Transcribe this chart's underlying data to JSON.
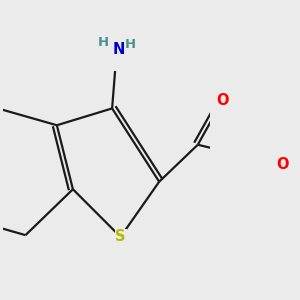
{
  "background_color": "#ebebeb",
  "atom_colors": {
    "S": "#b8b800",
    "N": "#0000cc",
    "O": "#ff0000",
    "C": "#000000",
    "H_teal": "#4a9090"
  },
  "bond_color": "#1a1a1a",
  "bond_width": 1.6,
  "font_size_atom": 10.5,
  "font_size_H": 9.5
}
